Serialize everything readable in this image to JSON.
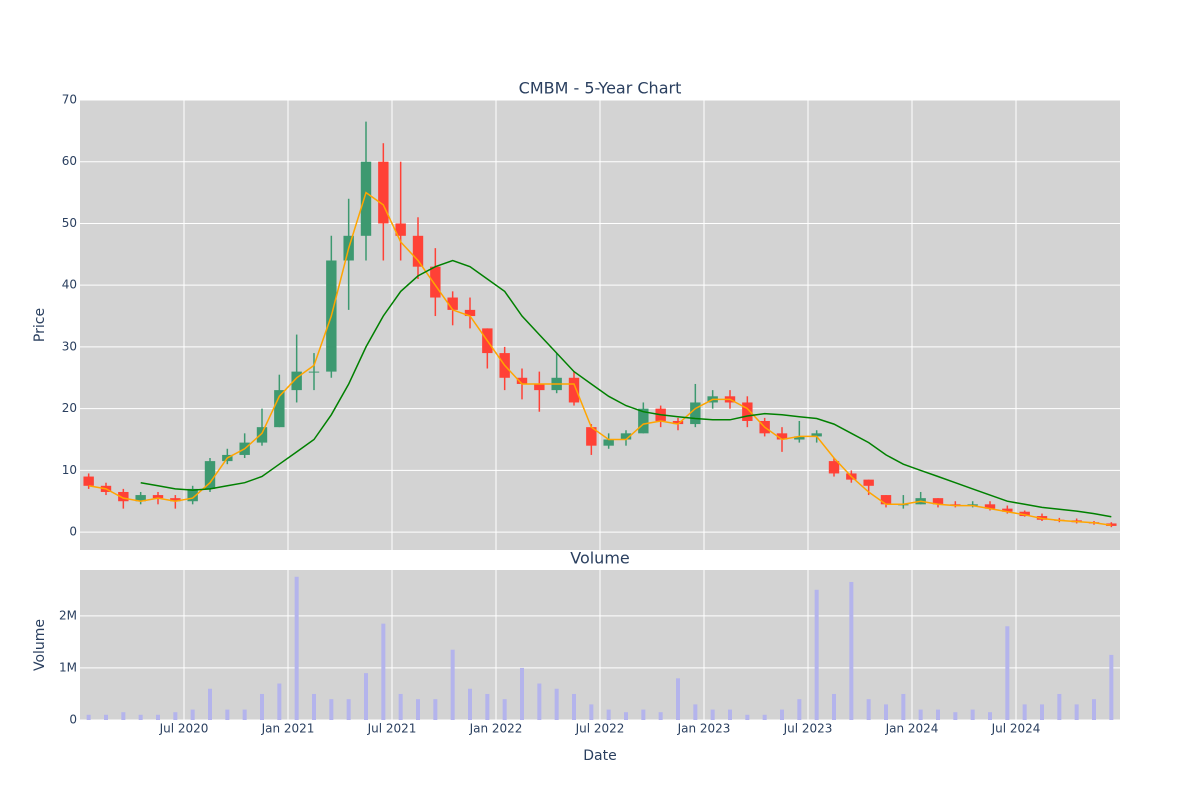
{
  "chart_data": [
    {
      "type": "candlestick",
      "title": "CMBM - 5-Year Chart",
      "y_label": "Price",
      "x": [
        "2020-01",
        "2020-02",
        "2020-03",
        "2020-04",
        "2020-05",
        "2020-06",
        "2020-07",
        "2020-08",
        "2020-09",
        "2020-10",
        "2020-11",
        "2020-12",
        "2021-01",
        "2021-02",
        "2021-03",
        "2021-04",
        "2021-05",
        "2021-06",
        "2021-07",
        "2021-08",
        "2021-09",
        "2021-10",
        "2021-11",
        "2021-12",
        "2022-01",
        "2022-02",
        "2022-03",
        "2022-04",
        "2022-05",
        "2022-06",
        "2022-07",
        "2022-08",
        "2022-09",
        "2022-10",
        "2022-11",
        "2022-12",
        "2023-01",
        "2023-02",
        "2023-03",
        "2023-04",
        "2023-05",
        "2023-06",
        "2023-07",
        "2023-08",
        "2023-09",
        "2023-10",
        "2023-11",
        "2023-12",
        "2024-01",
        "2024-02",
        "2024-03",
        "2024-04",
        "2024-05",
        "2024-06",
        "2024-07",
        "2024-08",
        "2024-09",
        "2024-10",
        "2024-11",
        "2024-12"
      ],
      "open": [
        9,
        7.5,
        6.5,
        5,
        6,
        5.5,
        5,
        7,
        11.5,
        12.5,
        14.5,
        17,
        23,
        26,
        26,
        44,
        48,
        60,
        50,
        48,
        43,
        38,
        36,
        33,
        29,
        25,
        24,
        23,
        25,
        17,
        14,
        15,
        16,
        20,
        18,
        17.5,
        21,
        22,
        21,
        18,
        16,
        15,
        15.5,
        11.5,
        9.5,
        8.5,
        6,
        4.5,
        4.5,
        5.5,
        4.5,
        4.3,
        4.5,
        3.8,
        3.3,
        2.6,
        2,
        1.9,
        1.6,
        1.4
      ],
      "high": [
        9.5,
        8,
        7,
        6.5,
        6.5,
        6,
        7.5,
        12,
        13.5,
        16,
        20,
        25.5,
        32,
        29,
        48,
        54,
        66.5,
        63,
        60,
        51,
        46,
        39,
        38,
        33,
        30,
        26.5,
        26,
        29,
        26,
        17.5,
        16,
        16.5,
        21,
        20.5,
        18.5,
        24,
        23,
        23,
        22,
        18.5,
        17,
        18,
        16.5,
        12,
        10,
        8.5,
        6,
        6,
        6.5,
        5.5,
        5,
        5,
        5,
        4.3,
        3.5,
        3,
        2.3,
        2.2,
        1.8,
        1.6
      ],
      "low": [
        7,
        6,
        3.8,
        4.5,
        4.5,
        3.8,
        4.5,
        6.5,
        11,
        12,
        14,
        17,
        21,
        23,
        25,
        36,
        44,
        44,
        44,
        41,
        35,
        33.5,
        33,
        26.5,
        23,
        21.5,
        19.5,
        22.5,
        20.5,
        12.5,
        13.5,
        14,
        16,
        17,
        16.5,
        17,
        20,
        20,
        17,
        15.5,
        13,
        14.5,
        14.5,
        9,
        8,
        6,
        4,
        3.8,
        4.5,
        4,
        4,
        4,
        3.5,
        3,
        2.5,
        1.8,
        1.6,
        1.4,
        1.2,
        0.8
      ],
      "close": [
        7.5,
        6.5,
        5,
        6,
        5.5,
        5,
        7,
        11.5,
        12.5,
        14.5,
        17,
        23,
        26,
        26,
        44,
        48,
        60,
        50,
        48,
        43,
        38,
        36,
        35,
        29,
        25,
        24,
        23,
        25,
        21,
        14,
        15,
        16,
        20,
        18,
        17.5,
        21,
        22,
        21,
        18,
        16,
        15,
        15.5,
        16,
        9.5,
        8.5,
        7.5,
        4.5,
        4.5,
        5.5,
        4.5,
        4.3,
        4.5,
        3.8,
        3.3,
        2.6,
        2,
        1.9,
        1.6,
        1.4,
        1
      ],
      "increasing_color": "#3d9970",
      "decreasing_color": "#ff4136",
      "series": [
        {
          "color": "orange",
          "values": [
            7.5,
            7,
            5.5,
            5,
            5.5,
            5,
            5.5,
            8,
            12,
            13.5,
            16,
            22,
            25,
            27,
            35,
            46,
            55,
            53,
            47,
            44,
            40,
            36,
            35,
            31,
            27,
            24,
            24,
            24,
            24,
            17,
            15,
            15,
            17.5,
            18,
            17.5,
            20,
            21.5,
            21.5,
            20,
            17,
            15,
            15.5,
            15.5,
            12,
            9,
            6.5,
            4.5,
            4.5,
            5,
            4.5,
            4.3,
            4.3,
            3.8,
            3.3,
            2.8,
            2.2,
            1.9,
            1.7,
            1.5,
            1.1
          ]
        },
        {
          "color": "green",
          "values": [
            null,
            null,
            null,
            8,
            7.5,
            7,
            6.8,
            7,
            7.5,
            8,
            9,
            11,
            13,
            15,
            19,
            24,
            30,
            35,
            39,
            41.5,
            43,
            44,
            43,
            41,
            39,
            35,
            32,
            29,
            26,
            24,
            22,
            20.5,
            19.5,
            19,
            18.7,
            18.4,
            18.2,
            18.2,
            18.8,
            19.2,
            19,
            18.7,
            18.4,
            17.5,
            16,
            14.5,
            12.5,
            11,
            10,
            9,
            8,
            7,
            6,
            5,
            4.5,
            4,
            3.7,
            3.4,
            3,
            2.5
          ]
        }
      ],
      "xlim": [
        "2020-01",
        "2025-01"
      ],
      "ylim": [
        -2.9,
        70
      ],
      "yticks": [
        0,
        10,
        20,
        30,
        40,
        50,
        60,
        70
      ],
      "grid": true,
      "background": "#d3d3d3"
    },
    {
      "type": "bar",
      "title": "Volume",
      "y_label": "Volume",
      "x_label": "Date",
      "color": "#b4b4ec",
      "values": [
        100000,
        100000,
        150000,
        100000,
        100000,
        150000,
        200000,
        600000,
        200000,
        200000,
        500000,
        700000,
        2750000,
        500000,
        400000,
        400000,
        900000,
        1850000,
        500000,
        400000,
        400000,
        1350000,
        600000,
        500000,
        400000,
        1000000,
        700000,
        600000,
        500000,
        300000,
        200000,
        150000,
        200000,
        150000,
        800000,
        300000,
        200000,
        200000,
        100000,
        100000,
        200000,
        400000,
        2500000,
        500000,
        2650000,
        400000,
        300000,
        500000,
        200000,
        200000,
        150000,
        200000,
        150000,
        1800000,
        300000,
        300000,
        500000,
        300000,
        400000,
        1250000
      ],
      "xticks": [
        {
          "value": "2020-07",
          "label": "Jul 2020"
        },
        {
          "value": "2021-01",
          "label": "Jan 2021"
        },
        {
          "value": "2021-07",
          "label": "Jul 2021"
        },
        {
          "value": "2022-01",
          "label": "Jan 2022"
        },
        {
          "value": "2022-07",
          "label": "Jul 2022"
        },
        {
          "value": "2023-01",
          "label": "Jan 2023"
        },
        {
          "value": "2023-07",
          "label": "Jul 2023"
        },
        {
          "value": "2024-01",
          "label": "Jan 2024"
        },
        {
          "value": "2024-07",
          "label": "Jul 2024"
        }
      ],
      "ylim": [
        0,
        2880000
      ],
      "yticks": [
        0,
        {
          "value": 1000000,
          "label": "1M"
        },
        {
          "value": 2000000,
          "label": "2M"
        }
      ],
      "grid": true,
      "background": "#d3d3d3"
    }
  ]
}
